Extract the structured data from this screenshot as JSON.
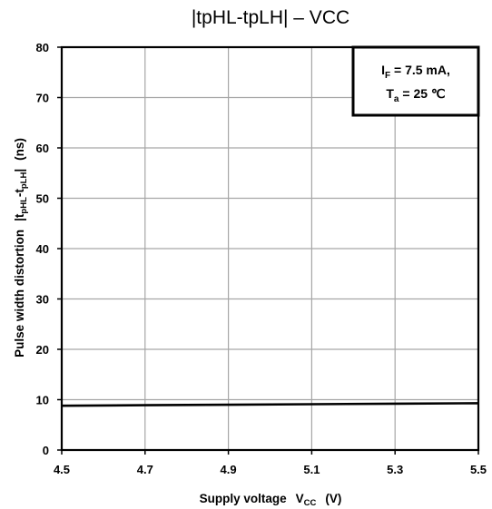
{
  "chart_data": {
    "type": "line",
    "title": "|tpHL-tpLH| – VCC",
    "xlabel": {
      "main": "Supply voltage",
      "symbol": "V",
      "symbol_sub": "CC",
      "unit": "(V)"
    },
    "ylabel": {
      "prefix": "Pulse width distortion",
      "bar_left": "|t",
      "sub1": "pHL",
      "dash": "-t",
      "sub2": "pLH",
      "bar_right": "|",
      "unit": "(ns)"
    },
    "xlim": [
      4.5,
      5.5
    ],
    "ylim": [
      0,
      80
    ],
    "x_ticks": [
      "4.5",
      "4.7",
      "4.9",
      "5.1",
      "5.3",
      "5.5"
    ],
    "y_ticks": [
      "0",
      "10",
      "20",
      "30",
      "40",
      "50",
      "60",
      "70",
      "80"
    ],
    "grid": true,
    "legend_box": {
      "placement": "top-right",
      "line1": {
        "symbol": "I",
        "sub": "F",
        "text": " = 7.5 mA,"
      },
      "line2": {
        "symbol": "T",
        "sub": "a",
        "text": " = 25 ℃"
      }
    },
    "series": [
      {
        "x": [
          4.5,
          4.7,
          4.9,
          5.1,
          5.3,
          5.5
        ],
        "values": [
          8.8,
          8.9,
          9.0,
          9.1,
          9.2,
          9.3
        ],
        "color": "#000000"
      }
    ]
  }
}
